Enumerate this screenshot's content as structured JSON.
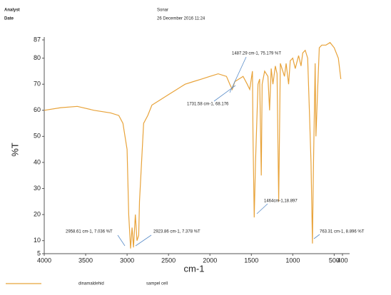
{
  "header": {
    "analyst_label": "Analyst",
    "date_label": "Date",
    "name": "Sonar",
    "date": "26 December 2016 11:24"
  },
  "chart_data": {
    "type": "line",
    "xlabel": "cm-1",
    "ylabel": "%T",
    "xlim": [
      4000,
      400
    ],
    "ylim": [
      5,
      87
    ],
    "xticks": [
      4000,
      3500,
      3000,
      2500,
      2000,
      1500,
      1000,
      500,
      400
    ],
    "yticks": [
      5,
      10,
      20,
      30,
      40,
      50,
      60,
      70,
      80,
      87
    ],
    "x": [
      4000,
      3800,
      3600,
      3400,
      3200,
      3100,
      3050,
      3000,
      2980,
      2958,
      2940,
      2923,
      2900,
      2880,
      2860,
      2850,
      2800,
      2750,
      2700,
      2600,
      2500,
      2400,
      2300,
      2200,
      2100,
      2000,
      1900,
      1800,
      1760,
      1731,
      1700,
      1650,
      1600,
      1550,
      1520,
      1487,
      1480,
      1465,
      1450,
      1420,
      1400,
      1380,
      1370,
      1340,
      1300,
      1280,
      1260,
      1240,
      1210,
      1190,
      1170,
      1150,
      1100,
      1080,
      1050,
      1030,
      1000,
      970,
      930,
      900,
      880,
      850,
      820,
      800,
      780,
      763,
      750,
      730,
      720,
      700,
      680,
      650,
      600,
      550,
      500,
      450,
      420
    ],
    "series": [
      {
        "name": "dinamaldehid",
        "color": "#e8a33a",
        "values": [
          60,
          61,
          61.5,
          60,
          59,
          58,
          55,
          45,
          20,
          7,
          15,
          7.4,
          20,
          10,
          12,
          25,
          55,
          58,
          62,
          64,
          66,
          68,
          70,
          71,
          72,
          73,
          74,
          73,
          70,
          68,
          71,
          72,
          73,
          70,
          68,
          75,
          50,
          18.9,
          40,
          70,
          72,
          35,
          70,
          75,
          73,
          60,
          76,
          70,
          77,
          74,
          25,
          78,
          73,
          78,
          70,
          79,
          80,
          76,
          81,
          77,
          82,
          83,
          80,
          60,
          40,
          8.9,
          40,
          78,
          50,
          68,
          84,
          85,
          85,
          86,
          84,
          80,
          72
        ]
      }
    ],
    "sample_label": "sampel cell",
    "annotations": [
      "2958.61 cm-1, 7.036 %T",
      "2923.86 cm-1, 7.378 %T",
      "1487.29 cm-1, 75.179 %T",
      "1731.58 cm-1, 68.176",
      "1464cm-1,18.897",
      "763.31 cm-1, 8.896 %T"
    ]
  }
}
